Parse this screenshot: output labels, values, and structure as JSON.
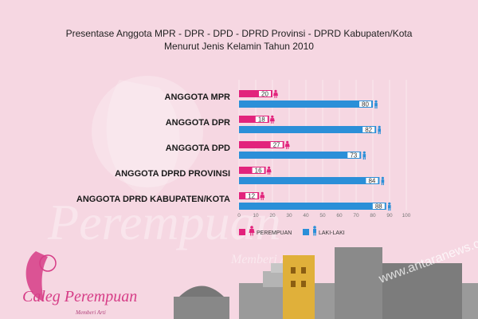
{
  "title_line1": "Presentase Anggota MPR - DPR - DPD - DPRD Provinsi - DPRD Kabupaten/Kota",
  "title_line2": "Menurut Jenis Kelamin Tahun 2010",
  "legend": {
    "female": "PEREMPUAN",
    "male": "LAKI-LAKI"
  },
  "logo": {
    "main": "Caleg Perempuan",
    "sub": "Memberi Arti"
  },
  "watermark": "www.antaranews.com",
  "colors": {
    "female": "#e2237c",
    "male": "#2b8fd8",
    "background": "#f6d7e2"
  },
  "chart_data": {
    "type": "bar",
    "orientation": "horizontal",
    "categories": [
      "ANGGOTA MPR",
      "ANGGOTA DPR",
      "ANGGOTA DPD",
      "ANGGOTA DPRD PROVINSI",
      "ANGGOTA DPRD KABUPATEN/KOTA"
    ],
    "series": [
      {
        "name": "PEREMPUAN",
        "values": [
          20,
          18,
          27,
          16,
          12
        ]
      },
      {
        "name": "LAKI-LAKI",
        "values": [
          80,
          82,
          73,
          84,
          88
        ]
      }
    ],
    "xlim": [
      0,
      100
    ],
    "xticks": [
      0,
      10,
      20,
      30,
      40,
      50,
      60,
      70,
      80,
      90,
      100
    ],
    "legend_position": "bottom-left"
  }
}
